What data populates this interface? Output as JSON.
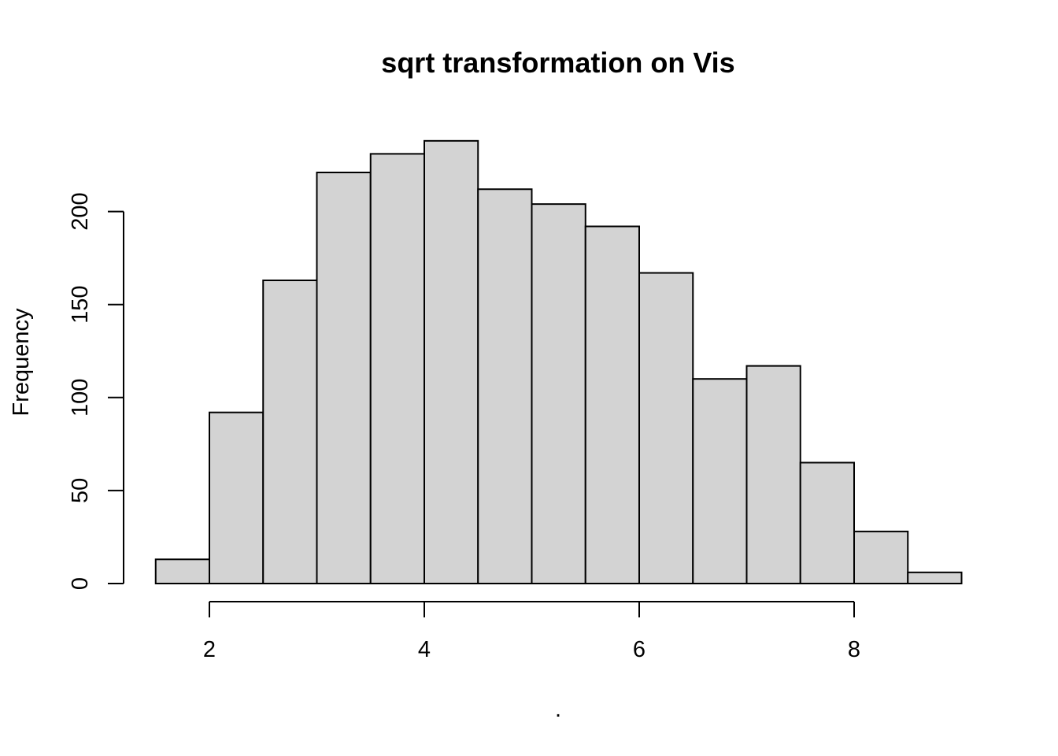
{
  "chart_data": {
    "type": "bar",
    "title": "sqrt transformation on Vis",
    "xlabel": ".",
    "ylabel": "Frequency",
    "bins": [
      {
        "start": 1.5,
        "end": 2.0,
        "count": 13
      },
      {
        "start": 2.0,
        "end": 2.5,
        "count": 92
      },
      {
        "start": 2.5,
        "end": 3.0,
        "count": 163
      },
      {
        "start": 3.0,
        "end": 3.5,
        "count": 221
      },
      {
        "start": 3.5,
        "end": 4.0,
        "count": 231
      },
      {
        "start": 4.0,
        "end": 4.5,
        "count": 238
      },
      {
        "start": 4.5,
        "end": 5.0,
        "count": 212
      },
      {
        "start": 5.0,
        "end": 5.5,
        "count": 204
      },
      {
        "start": 5.5,
        "end": 6.0,
        "count": 192
      },
      {
        "start": 6.0,
        "end": 6.5,
        "count": 167
      },
      {
        "start": 6.5,
        "end": 7.0,
        "count": 110
      },
      {
        "start": 7.0,
        "end": 7.5,
        "count": 117
      },
      {
        "start": 7.5,
        "end": 8.0,
        "count": 65
      },
      {
        "start": 8.0,
        "end": 8.5,
        "count": 28
      },
      {
        "start": 8.5,
        "end": 9.0,
        "count": 6
      }
    ],
    "xticks": [
      2,
      4,
      6,
      8
    ],
    "yticks": [
      0,
      50,
      100,
      150,
      200
    ],
    "xlim": [
      1.5,
      9.0
    ],
    "ylim": [
      0,
      238
    ],
    "grid": false,
    "legend": "none",
    "bar_color": "#d3d3d3",
    "edge_color": "#000000"
  }
}
